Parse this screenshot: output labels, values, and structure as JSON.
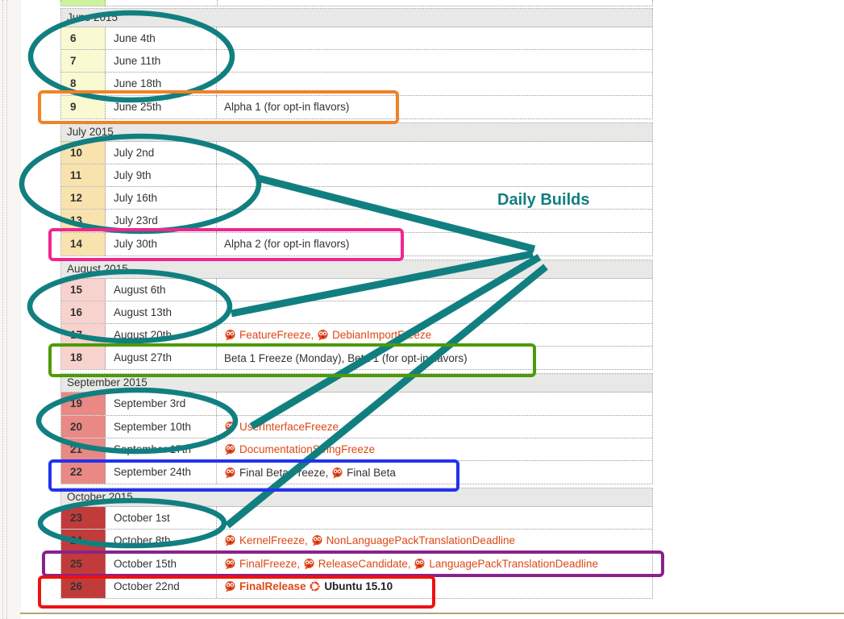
{
  "page": {
    "rule_color": "#b3a37c",
    "top_fragment_color": "#ccf49c",
    "link_color": "#dd4814",
    "month_header_bg": "#e8e8e6"
  },
  "annotations": {
    "daily_builds_label": "Daily Builds",
    "colors": {
      "teal": "#117f80",
      "alpha1_box": "#f08228",
      "alpha2_box": "#f0268f",
      "beta1_box": "#4e9a06",
      "final_beta_box": "#2233ee",
      "release_candidate_box": "#8a228a",
      "final_release_box": "#ee1111"
    }
  },
  "months": [
    {
      "label": "June 2015",
      "week_bg": "#fafad2",
      "rows": [
        {
          "week": "6",
          "date": "June 4th",
          "milestones": []
        },
        {
          "week": "7",
          "date": "June 11th",
          "milestones": []
        },
        {
          "week": "8",
          "date": "June 18th",
          "milestones": []
        },
        {
          "week": "9",
          "date": "June 25th",
          "milestones": [
            {
              "icon": "",
              "text": "Alpha 1 (for opt-in flavors)",
              "style": "plain",
              "sep": ""
            }
          ]
        }
      ]
    },
    {
      "label": "July 2015",
      "week_bg": "#f8e3ae",
      "rows": [
        {
          "week": "10",
          "date": "July 2nd",
          "milestones": []
        },
        {
          "week": "11",
          "date": "July 9th",
          "milestones": []
        },
        {
          "week": "12",
          "date": "July 16th",
          "milestones": []
        },
        {
          "week": "13",
          "date": "July 23rd",
          "milestones": []
        },
        {
          "week": "14",
          "date": "July 30th",
          "milestones": [
            {
              "icon": "",
              "text": "Alpha 2 (for opt-in flavors)",
              "style": "plain",
              "sep": ""
            }
          ]
        }
      ]
    },
    {
      "label": "August 2015",
      "week_bg": "#f8d2cd",
      "rows": [
        {
          "week": "15",
          "date": "August 6th",
          "milestones": []
        },
        {
          "week": "16",
          "date": "August 13th",
          "milestones": []
        },
        {
          "week": "17",
          "date": "August 20th",
          "milestones": [
            {
              "icon": "freeze",
              "text": "FeatureFreeze",
              "style": "link",
              "sep": ", "
            },
            {
              "icon": "freeze",
              "text": "DebianImportFreeze",
              "style": "link",
              "sep": ""
            }
          ]
        },
        {
          "week": "18",
          "date": "August 27th",
          "milestones": [
            {
              "icon": "",
              "text": "Beta 1 Freeze (Monday), Beta 1 (for opt-in flavors)",
              "style": "plain",
              "sep": ""
            }
          ]
        }
      ]
    },
    {
      "label": "September 2015",
      "week_bg": "#e98884",
      "rows": [
        {
          "week": "19",
          "date": "September 3rd",
          "milestones": []
        },
        {
          "week": "20",
          "date": "September 10th",
          "milestones": [
            {
              "icon": "freeze",
              "text": "UserInterfaceFreeze",
              "style": "link",
              "sep": ""
            }
          ]
        },
        {
          "week": "21",
          "date": "September 17th",
          "milestones": [
            {
              "icon": "freeze",
              "text": "DocumentationStringFreeze",
              "style": "link",
              "sep": ""
            }
          ]
        },
        {
          "week": "22",
          "date": "September 24th",
          "milestones": [
            {
              "icon": "freeze",
              "text": "Final Beta Freeze",
              "style": "plain",
              "sep": ", "
            },
            {
              "icon": "freeze",
              "text": "Final Beta",
              "style": "plain",
              "sep": ""
            }
          ]
        }
      ]
    },
    {
      "label": "October 2015",
      "week_bg": "#c23b3b",
      "rows": [
        {
          "week": "23",
          "date": "October 1st",
          "milestones": []
        },
        {
          "week": "24",
          "date": "October 8th",
          "milestones": [
            {
              "icon": "freeze",
              "text": "KernelFreeze",
              "style": "link",
              "sep": ", "
            },
            {
              "icon": "freeze",
              "text": "NonLanguagePackTranslationDeadline",
              "style": "link",
              "sep": ""
            }
          ]
        },
        {
          "week": "25",
          "date": "October 15th",
          "milestones": [
            {
              "icon": "freeze",
              "text": "FinalFreeze",
              "style": "link",
              "sep": ", "
            },
            {
              "icon": "freeze",
              "text": "ReleaseCandidate",
              "style": "link",
              "sep": ", "
            },
            {
              "icon": "freeze",
              "text": "LanguagePackTranslationDeadline",
              "style": "link",
              "sep": ""
            }
          ]
        },
        {
          "week": "26",
          "date": "October 22nd",
          "milestones": [
            {
              "icon": "freeze",
              "text": "FinalRelease",
              "style": "link b",
              "sep": " "
            },
            {
              "icon": "ubuntu",
              "text": "Ubuntu 15.10",
              "style": "plain b",
              "sep": ""
            }
          ]
        }
      ]
    }
  ]
}
